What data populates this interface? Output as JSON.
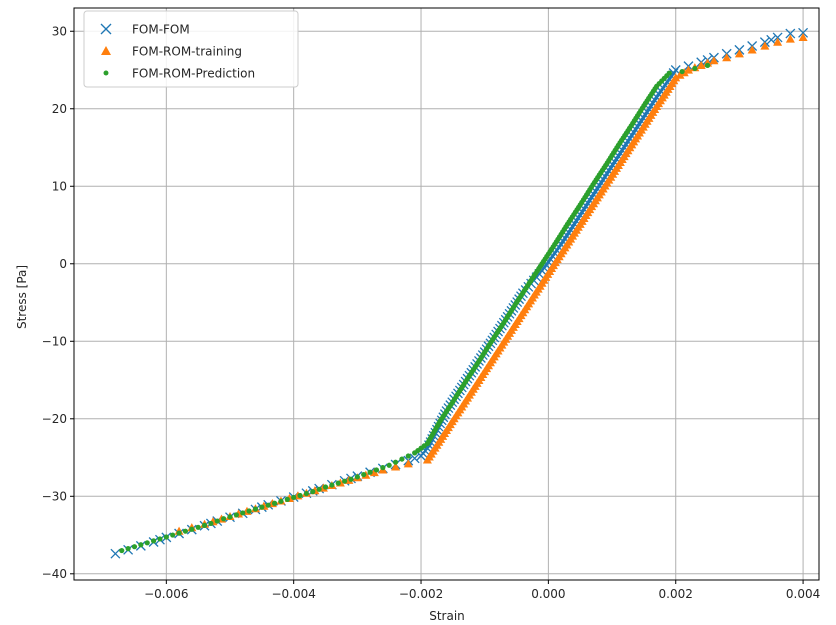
{
  "chart_data": {
    "type": "scatter",
    "title": "",
    "xlabel": "Strain",
    "ylabel": "Stress [Pa]",
    "xlim": [
      -0.00745,
      0.00425
    ],
    "ylim": [
      -40.8,
      33.0
    ],
    "grid": true,
    "legend_position": "upper-left",
    "xticks": [
      -0.006,
      -0.004,
      -0.002,
      0.0,
      0.002,
      0.004
    ],
    "xtick_labels": [
      "−0.006",
      "−0.004",
      "−0.002",
      "0.000",
      "0.002",
      "0.004"
    ],
    "yticks": [
      -40,
      -30,
      -20,
      -10,
      0,
      10,
      20,
      30
    ],
    "ytick_labels": [
      "−40",
      "−30",
      "−20",
      "−10",
      "0",
      "10",
      "20",
      "30"
    ],
    "series": [
      {
        "name": "FOM-FOM",
        "marker": "x",
        "color": "#1f77b4",
        "x": [
          -0.0068,
          -0.0066,
          -0.0064,
          -0.0062,
          -0.006,
          -0.0058,
          -0.0056,
          -0.0054,
          -0.0052,
          -0.005,
          -0.0048,
          -0.0046,
          -0.0044,
          -0.0042,
          -0.004,
          -0.0038,
          -0.0036,
          -0.0034,
          -0.0032,
          -0.003,
          -0.0028,
          -0.0026,
          -0.0024,
          -0.0022,
          -0.002,
          -0.0019,
          -0.0016,
          -0.0013,
          -0.001,
          -0.0007,
          -0.0004,
          -0.0001,
          0.0002,
          0.0005,
          0.0008,
          0.0011,
          0.0014,
          0.0017,
          0.002,
          0.0022,
          0.0024,
          0.0026,
          0.0028,
          0.003,
          0.0032,
          0.0034,
          0.0036,
          0.0038,
          0.004
        ],
        "y": [
          -37.4,
          -36.9,
          -36.4,
          -35.9,
          -35.3,
          -34.8,
          -34.3,
          -33.8,
          -33.2,
          -32.7,
          -32.2,
          -31.7,
          -31.1,
          -30.6,
          -30.1,
          -29.6,
          -29.0,
          -28.5,
          -28.0,
          -27.4,
          -26.9,
          -26.4,
          -25.9,
          -25.4,
          -24.8,
          -23.8,
          -19.0,
          -15.2,
          -11.4,
          -7.6,
          -3.8,
          -0.9,
          2.5,
          6.3,
          10.1,
          13.9,
          17.7,
          21.5,
          25.0,
          25.5,
          26.0,
          26.6,
          27.1,
          27.6,
          28.1,
          28.6,
          29.2,
          29.7,
          29.8
        ]
      },
      {
        "name": "FOM-ROM-training",
        "marker": "^",
        "color": "#ff7f0e",
        "x": [
          -0.0058,
          -0.0054,
          -0.005,
          -0.0046,
          -0.0042,
          -0.0038,
          -0.0034,
          -0.003,
          -0.0026,
          -0.0022,
          -0.0019,
          -0.0016,
          -0.0013,
          -0.001,
          -0.0007,
          -0.0004,
          -0.0001,
          0.0002,
          0.0005,
          0.0008,
          0.0011,
          0.0014,
          0.0017,
          0.002,
          0.0022,
          0.0024,
          0.0026,
          0.0028,
          0.003,
          0.0032,
          0.0034,
          0.0036,
          0.0038,
          0.004
        ],
        "y": [
          -34.5,
          -33.6,
          -32.6,
          -31.6,
          -30.6,
          -29.6,
          -28.6,
          -27.6,
          -26.6,
          -25.8,
          -25.3,
          -21.5,
          -17.7,
          -13.9,
          -10.1,
          -6.3,
          -2.5,
          1.3,
          5.1,
          8.9,
          12.7,
          16.5,
          20.3,
          24.0,
          25.0,
          25.6,
          26.2,
          26.6,
          27.1,
          27.6,
          28.1,
          28.6,
          29.0,
          29.2
        ]
      },
      {
        "name": "FOM-ROM-Prediction",
        "marker": "o",
        "color": "#2ca02c",
        "x": [
          -0.0067,
          -0.0065,
          -0.0063,
          -0.0061,
          -0.0059,
          -0.0057,
          -0.0055,
          -0.0053,
          -0.0051,
          -0.0049,
          -0.0047,
          -0.0045,
          -0.0043,
          -0.0041,
          -0.0039,
          -0.0037,
          -0.0035,
          -0.0033,
          -0.0031,
          -0.0029,
          -0.0027,
          -0.0025,
          -0.0023,
          -0.0021,
          -0.0019,
          -0.0017,
          -0.0015,
          -0.0013,
          -0.0011,
          -0.0009,
          -0.0007,
          -0.0005,
          -0.0003,
          -0.0001,
          0.0001,
          0.0003,
          0.0005,
          0.0007,
          0.0009,
          0.0011,
          0.0013,
          0.0015,
          0.0017,
          0.0019,
          0.0021,
          0.0023,
          0.0025
        ],
        "y": [
          -37.0,
          -36.5,
          -36.0,
          -35.5,
          -35.0,
          -34.5,
          -34.0,
          -33.5,
          -32.9,
          -32.4,
          -31.9,
          -31.4,
          -30.9,
          -30.4,
          -29.9,
          -29.4,
          -28.8,
          -28.3,
          -27.8,
          -27.2,
          -26.6,
          -26.0,
          -25.2,
          -24.4,
          -23.2,
          -20.3,
          -17.8,
          -15.2,
          -12.7,
          -10.1,
          -7.6,
          -5.0,
          -2.5,
          0.0,
          2.5,
          5.1,
          7.6,
          10.2,
          12.7,
          15.3,
          17.8,
          20.4,
          22.9,
          24.6,
          24.8,
          25.2,
          25.6
        ]
      }
    ]
  }
}
